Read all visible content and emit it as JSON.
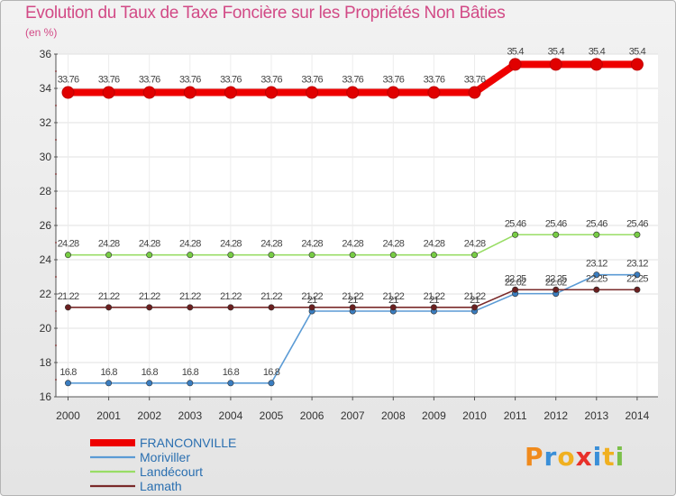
{
  "title": "Evolution du Taux de Taxe Foncière sur les Propriétés Non Bâties",
  "unit": "(en %)",
  "logo": "Proxiti",
  "chart_data": {
    "type": "line",
    "title": "Evolution du Taux de Taxe Foncière sur les Propriétés Non Bâties",
    "ylabel": "(en %)",
    "xlabel": "",
    "ylim": [
      16,
      36
    ],
    "yticks": [
      16,
      18,
      20,
      22,
      24,
      26,
      28,
      30,
      32,
      34,
      36
    ],
    "categories": [
      "2000",
      "2001",
      "2002",
      "2003",
      "2004",
      "2005",
      "2006",
      "2007",
      "2008",
      "2009",
      "2010",
      "2011",
      "2012",
      "2013",
      "2014"
    ],
    "legend_position": "bottom-left",
    "series": [
      {
        "name": "FRANCONVILLE",
        "color": "#ee0000",
        "thick": true,
        "values": [
          33.76,
          33.76,
          33.76,
          33.76,
          33.76,
          33.76,
          33.76,
          33.76,
          33.76,
          33.76,
          33.76,
          35.4,
          35.4,
          35.4,
          35.4
        ],
        "labels": [
          "33.76",
          "33.76",
          "33.76",
          "33.76",
          "33.76",
          "33.76",
          "33.76",
          "33.76",
          "33.76",
          "33.76",
          "33.76",
          "35.4",
          "35.4",
          "35.4",
          "35.4"
        ]
      },
      {
        "name": "Moriviller",
        "color": "#5b9bd5",
        "dot": "#3a7dc0",
        "values": [
          16.8,
          16.8,
          16.8,
          16.8,
          16.8,
          16.8,
          21,
          21,
          21,
          21,
          21,
          22.02,
          22.02,
          23.12,
          23.12
        ],
        "labels": [
          "16.8",
          "16.8",
          "16.8",
          "16.8",
          "16.8",
          "16.8",
          "21",
          "21",
          "21",
          "21",
          "21",
          "22.02",
          "22.02",
          "23.12",
          "23.12"
        ]
      },
      {
        "name": "Landécourt",
        "color": "#99dd66",
        "dot": "#77cc44",
        "values": [
          24.28,
          24.28,
          24.28,
          24.28,
          24.28,
          24.28,
          24.28,
          24.28,
          24.28,
          24.28,
          24.28,
          25.46,
          25.46,
          25.46,
          25.46
        ],
        "labels": [
          "24.28",
          "24.28",
          "24.28",
          "24.28",
          "24.28",
          "24.28",
          "24.28",
          "24.28",
          "24.28",
          "24.28",
          "24.28",
          "25.46",
          "25.46",
          "25.46",
          "25.46"
        ]
      },
      {
        "name": "Lamath",
        "color": "#7a2a2a",
        "dot": "#6a1f1f",
        "values": [
          21.22,
          21.22,
          21.22,
          21.22,
          21.22,
          21.22,
          21.22,
          21.22,
          21.22,
          21.22,
          21.22,
          22.25,
          22.25,
          22.25,
          22.25
        ],
        "labels": [
          "21.22",
          "21.22",
          "21.22",
          "21.22",
          "21.22",
          "21.22",
          "21.22",
          "21.22",
          "21.22",
          "21.22",
          "21.22",
          "22.25",
          "22.25",
          "22.25",
          "22.25"
        ]
      }
    ]
  }
}
